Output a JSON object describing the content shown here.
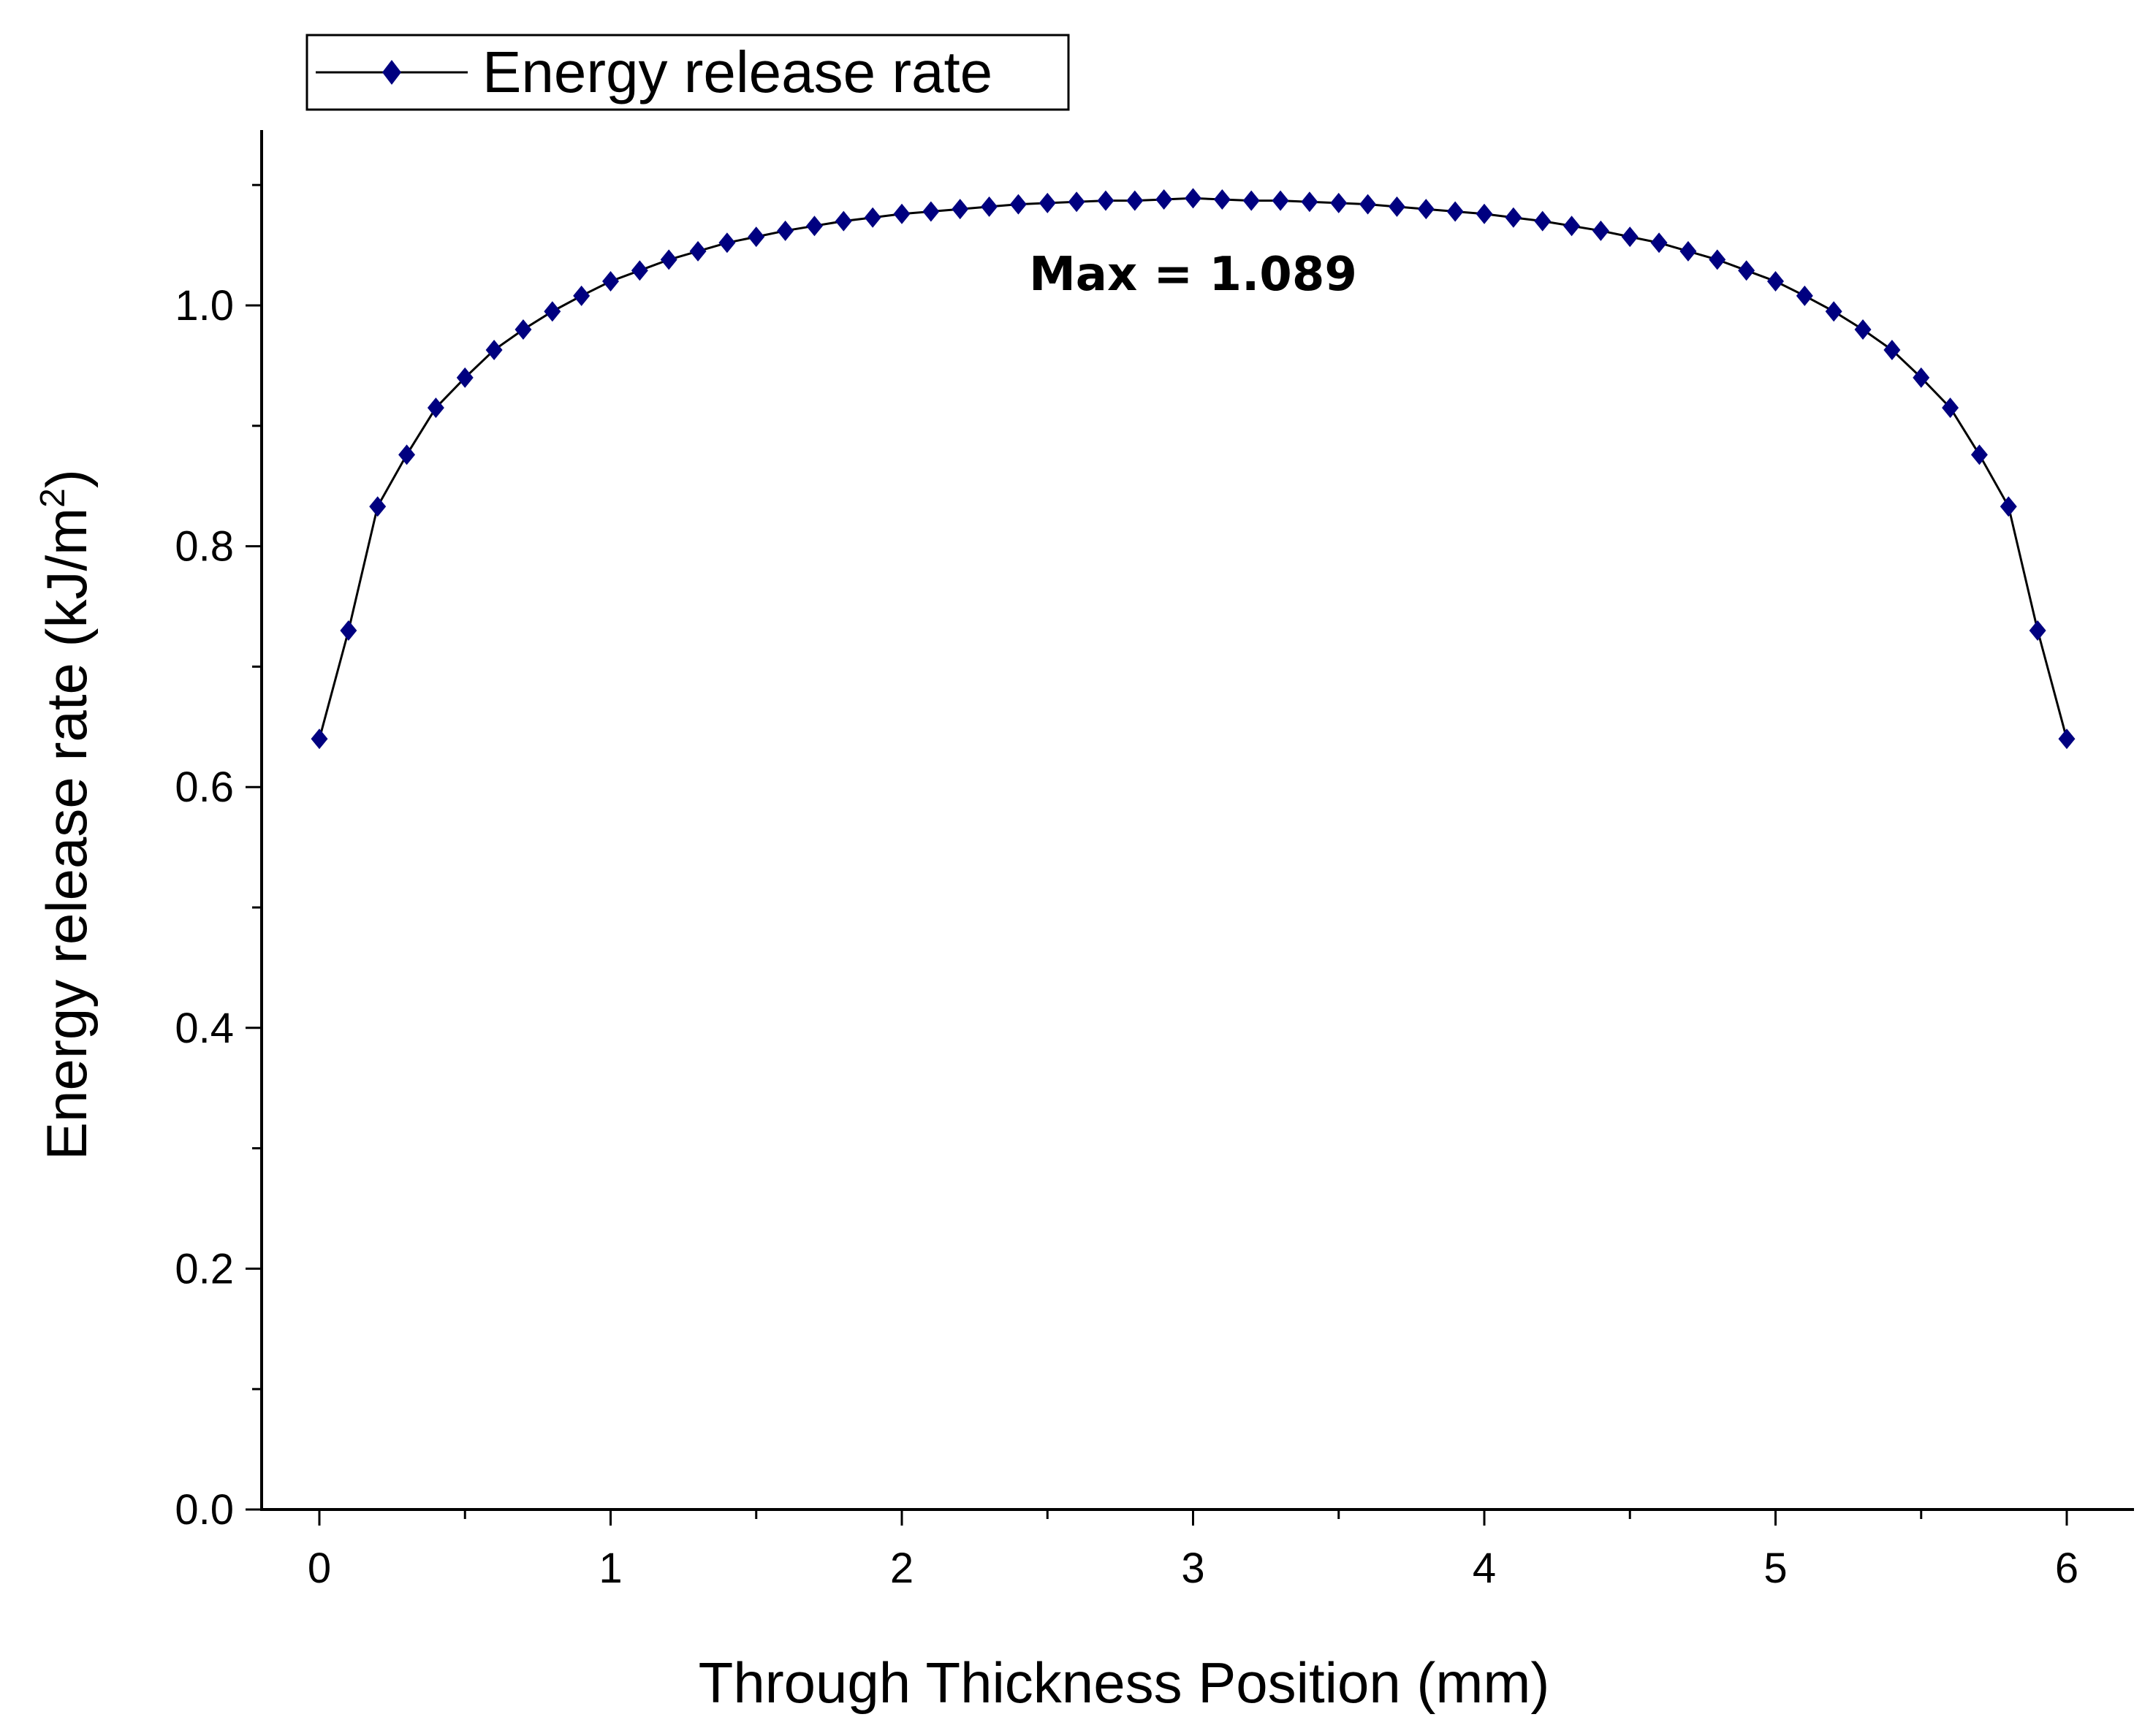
{
  "chart_data": {
    "type": "line",
    "title": "",
    "xlabel": "Through Thickness Position (mm)",
    "ylabel": "Energy release rate (kJ/m",
    "ylabel_superscript": "2",
    "ylabel_close": ")",
    "xlim": [
      -0.2,
      6.2
    ],
    "ylim": [
      0.0,
      1.15
    ],
    "xticks": [
      0,
      1,
      2,
      3,
      4,
      5,
      6
    ],
    "xtick_labels": [
      "0",
      "1",
      "2",
      "3",
      "4",
      "5",
      "6"
    ],
    "yticks": [
      0.0,
      0.2,
      0.4,
      0.6,
      0.8,
      1.0
    ],
    "ytick_labels": [
      "0.0",
      "0.2",
      "0.4",
      "0.6",
      "0.8",
      "1.0"
    ],
    "grid": false,
    "legend": {
      "position": "top-left",
      "entries": [
        "Energy release rate"
      ]
    },
    "annotation": {
      "text": "Max = 1.089",
      "x": 3.0,
      "y": 1.025
    },
    "series": [
      {
        "name": "Energy release rate",
        "line_color": "#000000",
        "marker": "diamond",
        "marker_color": "#000080",
        "x": [
          0,
          0.1,
          0.2,
          0.3,
          0.4,
          0.5,
          0.6,
          0.7,
          0.8,
          0.9,
          1.0,
          1.1,
          1.2,
          1.3,
          1.4,
          1.5,
          1.6,
          1.7,
          1.8,
          1.9,
          2.0,
          2.1,
          2.2,
          2.3,
          2.4,
          2.5,
          2.6,
          2.7,
          2.8,
          2.9,
          3.0,
          3.1,
          3.2,
          3.3,
          3.4,
          3.5,
          3.6,
          3.7,
          3.8,
          3.9,
          4.0,
          4.1,
          4.2,
          4.3,
          4.4,
          4.5,
          4.6,
          4.7,
          4.8,
          4.9,
          5.0,
          5.1,
          5.2,
          5.3,
          5.4,
          5.5,
          5.6,
          5.7,
          5.8,
          5.9,
          6.0
        ],
        "y": [
          0.64,
          0.73,
          0.833,
          0.876,
          0.915,
          0.94,
          0.963,
          0.98,
          0.995,
          1.008,
          1.02,
          1.029,
          1.038,
          1.045,
          1.052,
          1.057,
          1.062,
          1.066,
          1.07,
          1.073,
          1.076,
          1.078,
          1.08,
          1.082,
          1.084,
          1.085,
          1.086,
          1.087,
          1.087,
          1.088,
          1.089,
          1.088,
          1.087,
          1.087,
          1.086,
          1.085,
          1.084,
          1.082,
          1.08,
          1.078,
          1.076,
          1.073,
          1.07,
          1.066,
          1.062,
          1.057,
          1.052,
          1.045,
          1.038,
          1.029,
          1.02,
          1.008,
          0.995,
          0.98,
          0.963,
          0.94,
          0.915,
          0.876,
          0.833,
          0.73,
          0.64
        ]
      }
    ]
  }
}
